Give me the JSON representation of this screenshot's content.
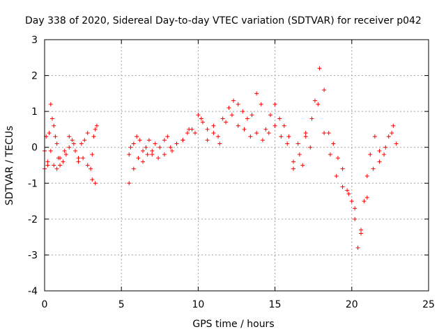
{
  "chart_data": {
    "type": "scatter",
    "title": "Day 338 of 2020, Sidereal Day-to-day VTEC variation (SDTVAR) for receiver p042",
    "xlabel": "GPS time / hours",
    "ylabel": "SDTVAR / TECUs",
    "xlim": [
      0,
      25
    ],
    "ylim": [
      -4,
      3
    ],
    "xticks": [
      0,
      5,
      10,
      15,
      20,
      25
    ],
    "yticks": [
      -4,
      -3,
      -2,
      -1,
      0,
      1,
      2,
      3
    ],
    "xtick_labels": [
      "0",
      "5",
      "10",
      "15",
      "20",
      "25"
    ],
    "ytick_labels": [
      "-4",
      "-3",
      "-2",
      "-1",
      "0",
      "1",
      "2",
      "3"
    ],
    "grid": true,
    "marker": "+",
    "color": "#ff0000",
    "series": [
      {
        "name": "p042",
        "x": [
          0.0,
          0.1,
          0.2,
          0.3,
          0.4,
          0.5,
          0.6,
          0.7,
          0.8,
          0.9,
          1.0,
          1.2,
          1.4,
          1.6,
          1.8,
          2.0,
          2.2,
          2.4,
          2.6,
          2.8,
          3.0,
          3.1,
          3.2,
          3.3,
          3.4,
          5.5,
          5.6,
          5.8,
          6.0,
          6.2,
          6.4,
          6.6,
          6.8,
          7.0,
          7.2,
          7.5,
          7.8,
          8.0,
          8.3,
          8.6,
          9.0,
          9.3,
          9.6,
          10.0,
          10.3,
          10.6,
          11.0,
          11.3,
          11.6,
          12.0,
          12.3,
          12.6,
          12.9,
          13.2,
          13.5,
          13.8,
          14.1,
          14.4,
          14.7,
          15.0,
          15.3,
          15.6,
          15.9,
          16.2,
          16.5,
          16.8,
          17.0,
          17.3,
          17.6,
          17.9,
          18.2,
          18.5,
          18.8,
          19.1,
          19.4,
          19.7,
          20.0,
          20.2,
          20.4,
          20.6,
          20.8,
          21.0,
          21.2,
          21.5,
          21.8,
          22.1,
          22.4,
          22.7,
          22.9,
          0.0,
          0.2,
          0.4,
          0.6,
          0.8,
          1.0,
          1.3,
          1.6,
          1.9,
          2.2,
          2.5,
          2.8,
          3.1,
          3.3,
          5.5,
          5.8,
          6.1,
          6.4,
          6.7,
          7.0,
          7.4,
          7.8,
          8.2,
          8.6,
          9.0,
          9.4,
          9.8,
          10.2,
          10.6,
          11.0,
          11.4,
          11.8,
          12.2,
          12.6,
          13.0,
          13.4,
          13.8,
          14.2,
          14.6,
          15.0,
          15.4,
          15.8,
          16.2,
          16.6,
          17.0,
          17.4,
          17.8,
          18.2,
          18.6,
          19.0,
          19.4,
          19.8,
          20.2,
          20.6,
          21.0,
          21.4,
          21.8,
          22.2,
          22.6
        ],
        "y": [
          -0.1,
          0.3,
          -0.5,
          0.4,
          1.2,
          0.8,
          0.6,
          0.3,
          0.1,
          -0.3,
          -0.5,
          -0.4,
          -0.2,
          0.0,
          0.2,
          -0.1,
          -0.3,
          0.1,
          0.2,
          0.4,
          -0.6,
          -0.9,
          0.3,
          0.5,
          0.6,
          -0.2,
          0.0,
          0.1,
          0.3,
          0.2,
          -0.1,
          0.0,
          0.2,
          -0.2,
          0.1,
          0.0,
          0.2,
          0.3,
          -0.1,
          0.1,
          0.2,
          0.4,
          0.5,
          0.9,
          0.7,
          0.5,
          0.6,
          0.3,
          0.8,
          1.1,
          1.3,
          1.2,
          1.0,
          0.8,
          0.9,
          1.5,
          1.2,
          0.5,
          0.9,
          1.2,
          0.8,
          0.6,
          0.3,
          -0.4,
          0.1,
          -0.5,
          0.3,
          0.0,
          1.3,
          2.2,
          1.6,
          0.4,
          0.1,
          -0.3,
          -0.6,
          -1.2,
          -1.5,
          -2.0,
          -2.8,
          -2.3,
          -1.5,
          -0.8,
          -0.2,
          0.3,
          -0.4,
          -0.2,
          0.3,
          0.6,
          0.1,
          -0.6,
          -0.4,
          -0.1,
          -0.5,
          -0.6,
          -0.3,
          -0.1,
          0.3,
          0.1,
          -0.4,
          -0.3,
          -0.5,
          -0.2,
          -1.0,
          -1.0,
          -0.6,
          -0.3,
          -0.4,
          -0.2,
          -0.1,
          -0.3,
          -0.2,
          0.0,
          0.1,
          0.2,
          0.5,
          0.4,
          0.8,
          0.2,
          0.4,
          0.1,
          0.7,
          0.9,
          0.6,
          0.5,
          0.3,
          0.4,
          0.2,
          0.4,
          0.6,
          0.3,
          0.1,
          -0.6,
          -0.2,
          0.4,
          0.8,
          1.2,
          0.4,
          -0.2,
          -0.8,
          -1.1,
          -1.3,
          -1.7,
          -2.4,
          -1.4,
          -0.6,
          -0.1,
          0.0,
          0.4
        ]
      }
    ]
  }
}
